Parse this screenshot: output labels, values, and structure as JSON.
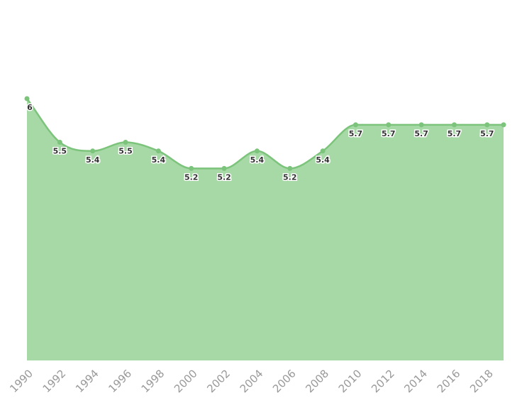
{
  "chart_data": {
    "type": "area",
    "x": [
      1990,
      1992,
      1994,
      1996,
      1998,
      2000,
      2002,
      2004,
      2006,
      2008,
      2010,
      2012,
      2014,
      2016,
      2018,
      2019
    ],
    "values": [
      6,
      5.5,
      5.4,
      5.5,
      5.4,
      5.2,
      5.2,
      5.4,
      5.2,
      5.4,
      5.7,
      5.7,
      5.7,
      5.7,
      5.7,
      5.7
    ],
    "value_labels": [
      "6",
      "5.5",
      "5.4",
      "5.5",
      "5.4",
      "5.2",
      "5.2",
      "5.4",
      "5.2",
      "5.4",
      "5.7",
      "5.7",
      "5.7",
      "5.7",
      "5.7",
      null
    ],
    "color": "#7cc47c",
    "fill": "#a6d9a5",
    "xlim": [
      1990,
      2019
    ],
    "xticks": [
      1990,
      1992,
      1994,
      1996,
      1998,
      2000,
      2002,
      2004,
      2006,
      2008,
      2010,
      2012,
      2014,
      2016,
      2018
    ],
    "ylim": [
      3,
      7
    ]
  }
}
